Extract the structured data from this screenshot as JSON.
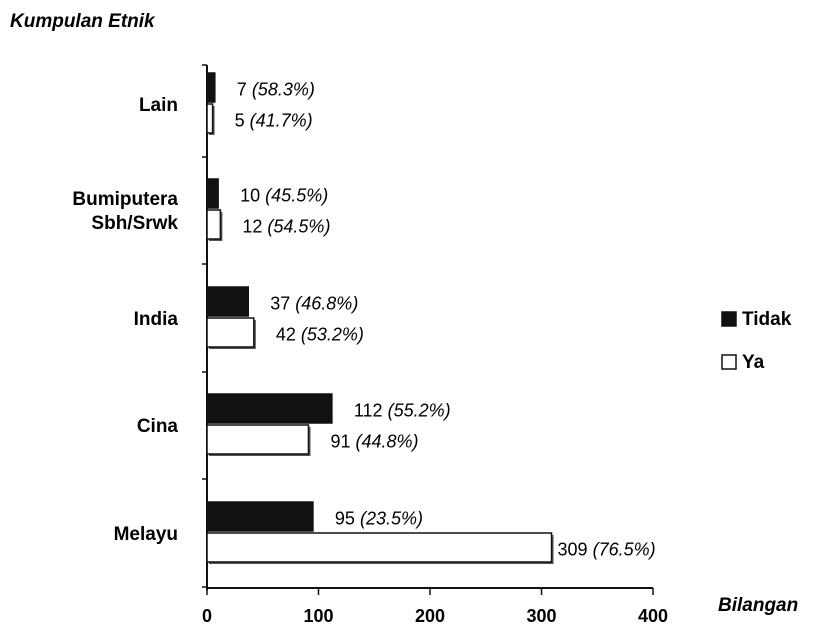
{
  "chart_data": {
    "type": "bar",
    "orientation": "horizontal",
    "ylabel": "Kumpulan Etnik",
    "xlabel": "Bilangan",
    "xlim": [
      0,
      400
    ],
    "xticks": [
      "0",
      "100",
      "200",
      "300",
      "400"
    ],
    "grid": false,
    "legend_position": "right",
    "categories": [
      {
        "lines": [
          "Lain"
        ]
      },
      {
        "lines": [
          "Bumiputera",
          "Sbh/Srwk"
        ]
      },
      {
        "lines": [
          "India"
        ]
      },
      {
        "lines": [
          "Cina"
        ]
      },
      {
        "lines": [
          "Melayu"
        ]
      }
    ],
    "series": [
      {
        "name": "Tidak",
        "color": "#111111",
        "values": [
          7,
          10,
          37,
          112,
          95
        ],
        "labels": [
          [
            "7",
            "(58.3%)"
          ],
          [
            "10",
            "(45.5%)"
          ],
          [
            "37",
            "(46.8%)"
          ],
          [
            "112",
            "(55.2%)"
          ],
          [
            "95",
            "(23.5%)"
          ]
        ]
      },
      {
        "name": "Ya",
        "color": "#ffffff",
        "values": [
          5,
          12,
          42,
          91,
          309
        ],
        "labels": [
          [
            "5",
            "(41.7%)"
          ],
          [
            "12",
            "(54.5%)"
          ],
          [
            "42",
            "(53.2%)"
          ],
          [
            "91",
            "(44.8%)"
          ],
          [
            "309",
            "(76.5%)"
          ]
        ]
      }
    ]
  }
}
